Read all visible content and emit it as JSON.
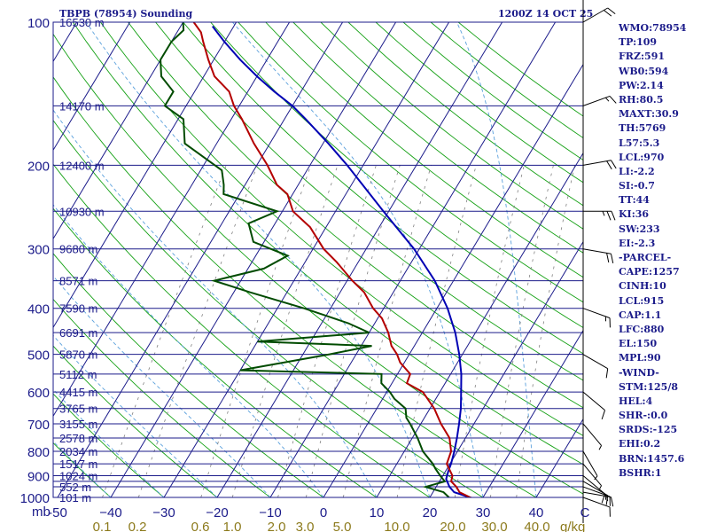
{
  "header": {
    "station_title": "TBPB (78954) Sounding",
    "time_title": "1200Z 14 OCT 25"
  },
  "indices": [
    "WMO:78954",
    "TP:109",
    "FRZ:591",
    "WB0:594",
    "PW:2.14",
    "RH:80.5",
    "MAXT:30.9",
    "TH:5769",
    "L57:5.3",
    "LCL:970",
    "LI:-2.2",
    "SI:-0.7",
    "TT:44",
    "KI:36",
    "SW:233",
    "EI:-2.3",
    "-PARCEL-",
    "CAPE:1257",
    "CINH:10",
    "LCL:915",
    "CAP:1.1",
    "LFC:880",
    "EL:150",
    "MPL:90",
    "-WIND-",
    "STM:125/8",
    "HEL:4",
    "SHR-:0.0",
    "SRDS:-125",
    "EHI:0.2",
    "BRN:1457.6",
    "BSHR:1"
  ],
  "colors": {
    "isobar": "#1b1b8a",
    "isotherm": "#1b1b8a",
    "dry_adiabat": "#14a014",
    "moist_adiabat": "#5aa0dc",
    "mixing_ratio": "#808080",
    "temperature": "#b40000",
    "dewpoint": "#004b00",
    "parcel": "#0000b4",
    "wind": "#000000",
    "mixing_label": "#8c7a1c"
  },
  "chart_data": {
    "type": "skew-t log-p sounding",
    "title": "TBPB (78954) Sounding",
    "pressure_unit": "mb",
    "pressure_axis_label": "mb",
    "pressure_ticks": [
      100,
      200,
      300,
      400,
      500,
      600,
      700,
      800,
      900,
      1000
    ],
    "pressure_levels": [
      100,
      150,
      200,
      250,
      300,
      350,
      400,
      450,
      500,
      550,
      600,
      650,
      700,
      750,
      800,
      850,
      900,
      925,
      950,
      1000
    ],
    "height_labels": [
      {
        "p": 100,
        "label": "16530 m"
      },
      {
        "p": 150,
        "label": "14170 m"
      },
      {
        "p": 200,
        "label": "12400 m"
      },
      {
        "p": 250,
        "label": "10930 m"
      },
      {
        "p": 300,
        "label": "9680 m"
      },
      {
        "p": 350,
        "label": "8571 m"
      },
      {
        "p": 400,
        "label": "7590 m"
      },
      {
        "p": 450,
        "label": "6691 m"
      },
      {
        "p": 500,
        "label": "5870 m"
      },
      {
        "p": 550,
        "label": "5112 m"
      },
      {
        "p": 600,
        "label": "4415 m"
      },
      {
        "p": 650,
        "label": "3765 m"
      },
      {
        "p": 700,
        "label": "3155 m"
      },
      {
        "p": 750,
        "label": "2578 m"
      },
      {
        "p": 800,
        "label": "2034 m"
      },
      {
        "p": 850,
        "label": "1517 m"
      },
      {
        "p": 900,
        "label": "1024 m"
      },
      {
        "p": 950,
        "label": "552 m"
      },
      {
        "p": 1000,
        "label": "101 m"
      }
    ],
    "temperature_ticks": [
      -50,
      -40,
      -30,
      -20,
      -10,
      0,
      10,
      20,
      30,
      40
    ],
    "temperature_tick_labels": [
      "-50",
      "−40",
      "−30",
      "−20",
      "−10",
      "0",
      "10",
      "20",
      "30",
      "40"
    ],
    "temperature_range": [
      -50,
      50
    ],
    "mixing_ratio_values": [
      0.1,
      0.2,
      0.6,
      1.0,
      2.0,
      3.0,
      5.0,
      10.0,
      20.0,
      30.0,
      40.0
    ],
    "mixing_ratio_labels": [
      "0.1",
      "0.2",
      "0.6",
      "1.0",
      "2.0",
      "3.0",
      "5.0",
      "10.0",
      "20.0",
      "30.0",
      "40.0"
    ],
    "mixing_ratio_unit": "g/kg",
    "corner_label": "C",
    "temperature": [
      [
        1007,
        28.5
      ],
      [
        1000,
        27.6
      ],
      [
        975,
        25.0
      ],
      [
        950,
        23.8
      ],
      [
        925,
        22.2
      ],
      [
        900,
        21.8
      ],
      [
        850,
        19.4
      ],
      [
        800,
        18.8
      ],
      [
        750,
        17.0
      ],
      [
        700,
        13.8
      ],
      [
        650,
        10.8
      ],
      [
        600,
        6.8
      ],
      [
        575,
        2.8
      ],
      [
        550,
        2.4
      ],
      [
        520,
        -0.8
      ],
      [
        500,
        -2.3
      ],
      [
        480,
        -4.3
      ],
      [
        450,
        -6.4
      ],
      [
        420,
        -9.2
      ],
      [
        400,
        -12.0
      ],
      [
        370,
        -15.5
      ],
      [
        350,
        -19.0
      ],
      [
        320,
        -24.0
      ],
      [
        300,
        -28.0
      ],
      [
        270,
        -33.0
      ],
      [
        250,
        -38.0
      ],
      [
        230,
        -41.0
      ],
      [
        220,
        -44.0
      ],
      [
        200,
        -48.0
      ],
      [
        180,
        -53.0
      ],
      [
        160,
        -58.0
      ],
      [
        150,
        -61.0
      ],
      [
        140,
        -63.5
      ],
      [
        130,
        -68.0
      ],
      [
        120,
        -71.0
      ],
      [
        110,
        -74.0
      ],
      [
        105,
        -75.5
      ],
      [
        100,
        -78.0
      ]
    ],
    "dewpoint": [
      [
        1007,
        24.0
      ],
      [
        1000,
        23.6
      ],
      [
        975,
        22.0
      ],
      [
        950,
        18.0
      ],
      [
        925,
        21.0
      ],
      [
        900,
        19.5
      ],
      [
        870,
        17.8
      ],
      [
        850,
        16.8
      ],
      [
        800,
        13.5
      ],
      [
        750,
        11.0
      ],
      [
        700,
        8.0
      ],
      [
        680,
        6.6
      ],
      [
        650,
        5.4
      ],
      [
        620,
        2.2
      ],
      [
        600,
        0.6
      ],
      [
        575,
        -2.0
      ],
      [
        550,
        -3.0
      ],
      [
        540,
        -30.0
      ],
      [
        500,
        -15.0
      ],
      [
        480,
        -8.0
      ],
      [
        470,
        -30.0
      ],
      [
        450,
        -10.0
      ],
      [
        430,
        -15.0
      ],
      [
        400,
        -25.0
      ],
      [
        370,
        -37.0
      ],
      [
        350,
        -45.0
      ],
      [
        330,
        -37.0
      ],
      [
        310,
        -34.0
      ],
      [
        290,
        -42.0
      ],
      [
        265,
        -45.0
      ],
      [
        250,
        -41.0
      ],
      [
        230,
        -53.0
      ],
      [
        220,
        -54.0
      ],
      [
        205,
        -56.0
      ],
      [
        180,
        -66.0
      ],
      [
        160,
        -69.0
      ],
      [
        150,
        -74.0
      ],
      [
        140,
        -74.0
      ],
      [
        130,
        -78.0
      ],
      [
        120,
        -80.0
      ],
      [
        110,
        -80.0
      ],
      [
        104,
        -79.0
      ],
      [
        100,
        -80.0
      ]
    ],
    "parcel": [
      [
        1007,
        28.5
      ],
      [
        975,
        24.0
      ],
      [
        950,
        22.5
      ],
      [
        915,
        21.0
      ],
      [
        880,
        20.5
      ],
      [
        850,
        20.2
      ],
      [
        800,
        19.4
      ],
      [
        750,
        18.4
      ],
      [
        700,
        17.2
      ],
      [
        650,
        15.8
      ],
      [
        600,
        14.0
      ],
      [
        550,
        12.0
      ],
      [
        500,
        9.4
      ],
      [
        450,
        6.2
      ],
      [
        400,
        2.0
      ],
      [
        350,
        -3.5
      ],
      [
        300,
        -11.0
      ],
      [
        250,
        -21.0
      ],
      [
        200,
        -33.0
      ],
      [
        180,
        -39.0
      ],
      [
        160,
        -46.0
      ],
      [
        150,
        -50.0
      ],
      [
        140,
        -55.0
      ],
      [
        130,
        -60.0
      ],
      [
        120,
        -65.0
      ],
      [
        110,
        -70.0
      ],
      [
        102,
        -74.0
      ]
    ],
    "wind_barbs": [
      {
        "p": 1000,
        "dir": 110,
        "spd": 10
      },
      {
        "p": 975,
        "dir": 100,
        "spd": 15
      },
      {
        "p": 950,
        "dir": 110,
        "spd": 15
      },
      {
        "p": 925,
        "dir": 120,
        "spd": 10
      },
      {
        "p": 900,
        "dir": 130,
        "spd": 10
      },
      {
        "p": 850,
        "dir": 140,
        "spd": 5
      },
      {
        "p": 800,
        "dir": 150,
        "spd": 5
      },
      {
        "p": 700,
        "dir": 140,
        "spd": 5
      },
      {
        "p": 600,
        "dir": 130,
        "spd": 10
      },
      {
        "p": 500,
        "dir": 120,
        "spd": 10
      },
      {
        "p": 400,
        "dir": 110,
        "spd": 15
      },
      {
        "p": 300,
        "dir": 100,
        "spd": 20
      },
      {
        "p": 250,
        "dir": 90,
        "spd": 25
      },
      {
        "p": 200,
        "dir": 80,
        "spd": 20
      },
      {
        "p": 150,
        "dir": 70,
        "spd": 15
      },
      {
        "p": 100,
        "dir": 60,
        "spd": 20
      }
    ]
  }
}
